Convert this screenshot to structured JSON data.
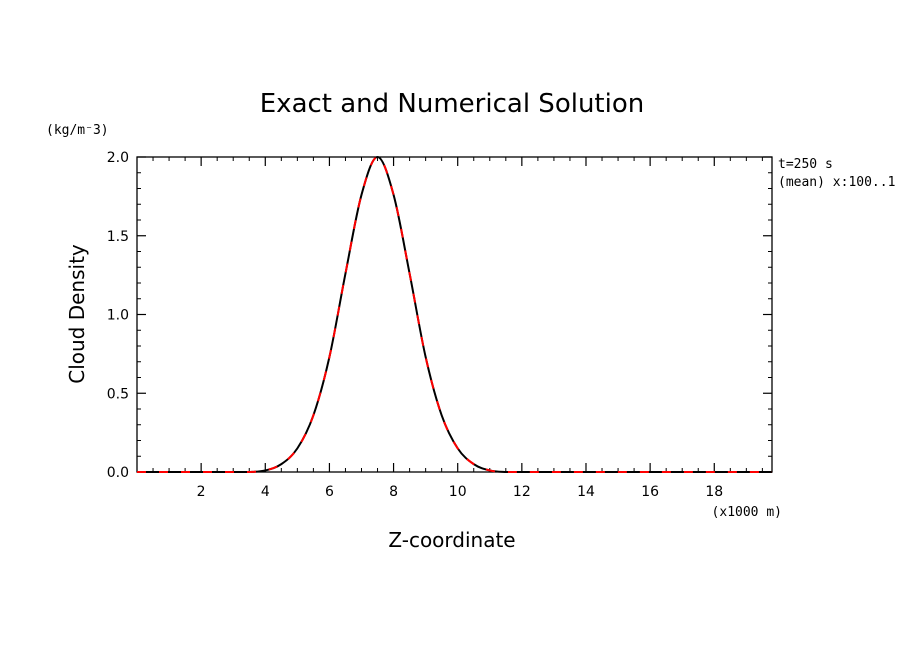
{
  "chart_data": {
    "type": "line",
    "title": "Exact and Numerical Solution",
    "xlabel": "Z-coordinate",
    "ylabel": "Cloud Density",
    "x_units": "(x1000 m)",
    "y_units": "(kg/m⁻3)",
    "annotations": [
      "t=250 s",
      "(mean) x:100..1"
    ],
    "xlim": [
      0,
      19.8
    ],
    "ylim": [
      0,
      2.0
    ],
    "x_ticks": [
      2,
      4,
      6,
      8,
      10,
      12,
      14,
      16,
      18
    ],
    "y_ticks": [
      0.0,
      0.5,
      1.0,
      1.5,
      2.0
    ],
    "y_tick_labels": [
      "0.0",
      "0.5",
      "1.0",
      "1.5",
      "2.0"
    ],
    "grid": false,
    "series": [
      {
        "style": "solid",
        "color": "#000000",
        "x": [
          0.0,
          0.5,
          1.0,
          1.5,
          2.0,
          2.5,
          3.0,
          3.5,
          4.0,
          4.5,
          5.0,
          5.5,
          6.0,
          6.5,
          7.0,
          7.5,
          8.0,
          8.5,
          9.0,
          9.5,
          10.0,
          10.5,
          11.0,
          11.5,
          12.0,
          13.0,
          14.0,
          15.0,
          16.0,
          17.0,
          18.0,
          19.0,
          19.8
        ],
        "values": [
          0.0,
          0.0,
          0.0,
          0.0,
          0.0,
          0.0,
          0.0,
          0.0,
          0.01,
          0.05,
          0.15,
          0.36,
          0.73,
          1.26,
          1.76,
          2.0,
          1.76,
          1.26,
          0.73,
          0.36,
          0.15,
          0.05,
          0.01,
          0.0,
          0.0,
          0.0,
          0.0,
          0.0,
          0.0,
          0.0,
          0.0,
          0.0,
          0.0
        ]
      },
      {
        "style": "dashed",
        "color": "#ff0000",
        "x": [
          0.0,
          0.5,
          1.0,
          1.5,
          2.0,
          2.5,
          3.0,
          3.5,
          4.0,
          4.5,
          5.0,
          5.5,
          6.0,
          6.5,
          7.0,
          7.5,
          8.0,
          8.5,
          9.0,
          9.5,
          10.0,
          10.5,
          11.0,
          11.5,
          12.0,
          13.0,
          14.0,
          15.0,
          16.0,
          17.0,
          18.0,
          19.0,
          19.8
        ],
        "values": [
          0.0,
          0.0,
          0.0,
          0.0,
          0.0,
          0.0,
          0.0,
          0.0,
          0.01,
          0.05,
          0.15,
          0.36,
          0.73,
          1.26,
          1.76,
          2.0,
          1.76,
          1.26,
          0.73,
          0.36,
          0.15,
          0.05,
          0.01,
          0.0,
          0.0,
          0.0,
          0.0,
          0.0,
          0.0,
          0.0,
          0.0,
          0.0,
          0.0
        ]
      }
    ]
  }
}
